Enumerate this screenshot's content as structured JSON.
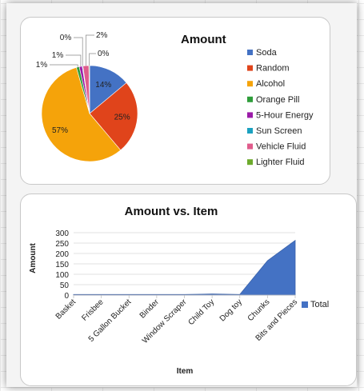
{
  "chart_data": [
    {
      "type": "pie",
      "title": "Amount",
      "categories": [
        "Soda",
        "Random",
        "Alcohol",
        "Orange Pill",
        "5-Hour Energy",
        "Sun Screen",
        "Vehicle Fluid",
        "Lighter Fluid"
      ],
      "values": [
        14,
        25,
        57,
        1,
        1,
        0,
        2,
        0
      ],
      "labels": [
        "14%",
        "25%",
        "57%",
        "1%",
        "1%",
        "0%",
        "2%",
        "0%"
      ],
      "colors": [
        "#4472C4",
        "#E0441B",
        "#F5A30A",
        "#2E9D3A",
        "#9B1BA8",
        "#1BA1C0",
        "#E05C8C",
        "#6DAA2C"
      ],
      "legend_position": "right"
    },
    {
      "type": "area",
      "title": "Amount vs. Item",
      "xlabel": "Item",
      "ylabel": "Amount",
      "categories": [
        "Basket",
        "Frisbee",
        "5 Gallon Bucket",
        "Binder",
        "Window Scraper",
        "Child Toy",
        "Dog toy",
        "Chunks",
        "Bits and Pieces"
      ],
      "series": [
        {
          "name": "Total",
          "values": [
            3,
            3,
            3,
            3,
            3,
            5,
            3,
            165,
            263
          ]
        }
      ],
      "ylim": [
        0,
        300
      ],
      "yticks": [
        "0",
        "50",
        "100",
        "150",
        "200",
        "250",
        "300"
      ],
      "grid": true,
      "legend_position": "right",
      "color": "#4472C4"
    }
  ]
}
